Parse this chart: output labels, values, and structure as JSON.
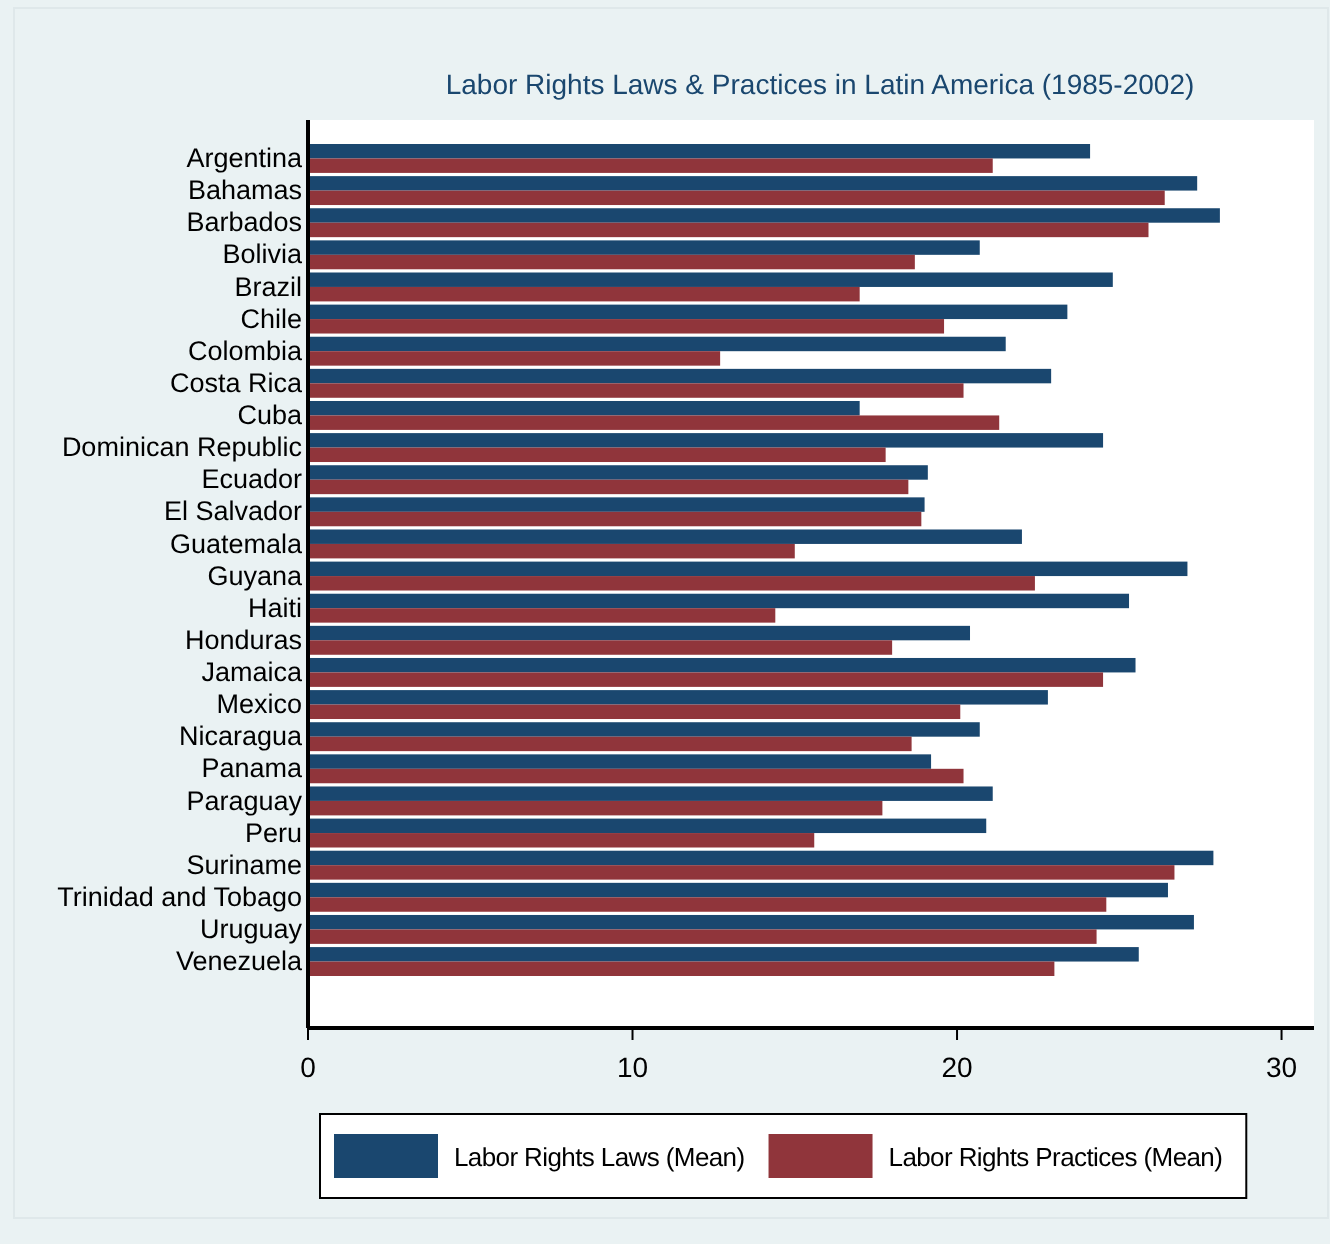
{
  "chart_data": {
    "type": "bar",
    "orientation": "horizontal",
    "title": "Labor Rights Laws & Practices in Latin America (1985-2002)",
    "categories": [
      "Argentina",
      "Bahamas",
      "Barbados",
      "Bolivia",
      "Brazil",
      "Chile",
      "Colombia",
      "Costa Rica",
      "Cuba",
      "Dominican Republic",
      "Ecuador",
      "El Salvador",
      "Guatemala",
      "Guyana",
      "Haiti",
      "Honduras",
      "Jamaica",
      "Mexico",
      "Nicaragua",
      "Panama",
      "Paraguay",
      "Peru",
      "Suriname",
      "Trinidad and Tobago",
      "Uruguay",
      "Venezuela"
    ],
    "series": [
      {
        "name": "Labor Rights Laws (Mean)",
        "color": "#1a476f",
        "values": [
          24.1,
          27.4,
          28.1,
          20.7,
          24.8,
          23.4,
          21.5,
          22.9,
          17.0,
          24.5,
          19.1,
          19.0,
          22.0,
          27.1,
          25.3,
          20.4,
          25.5,
          22.8,
          20.7,
          19.2,
          21.1,
          20.9,
          27.9,
          26.5,
          27.3,
          25.6
        ]
      },
      {
        "name": "Labor Rights Practices (Mean)",
        "color": "#90353b",
        "values": [
          21.1,
          26.4,
          25.9,
          18.7,
          17.0,
          19.6,
          12.7,
          20.2,
          21.3,
          17.8,
          18.5,
          18.9,
          15.0,
          22.4,
          14.4,
          18.0,
          24.5,
          20.1,
          18.6,
          20.2,
          17.7,
          15.6,
          26.7,
          24.6,
          24.3,
          23.0
        ]
      }
    ],
    "xlim": [
      0,
      31
    ],
    "xticks": [
      0,
      10,
      20,
      30
    ],
    "grid": false,
    "legend": "bottom"
  }
}
